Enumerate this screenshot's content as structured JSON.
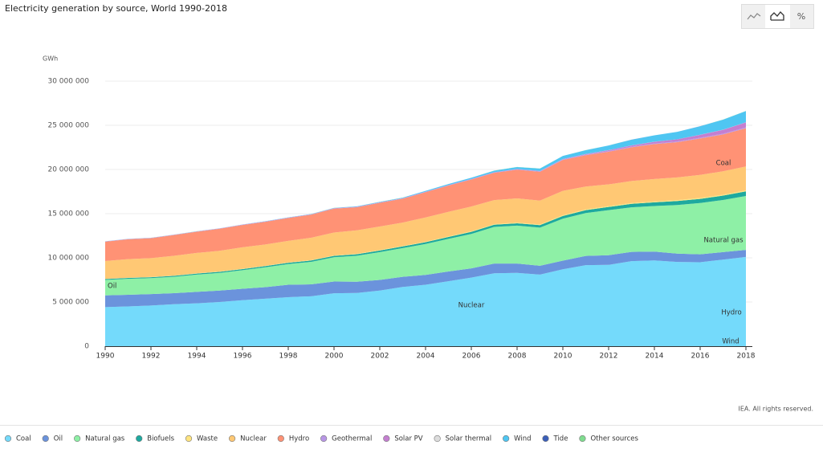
{
  "chart_data": {
    "type": "stacked_area",
    "title": "Electricity generation by source, World 1990-2018",
    "y_label": "GWh",
    "source": "IEA. All rights reserved.",
    "percent_button": "%",
    "x": [
      1990,
      1991,
      1992,
      1993,
      1994,
      1995,
      1996,
      1997,
      1998,
      1999,
      2000,
      2001,
      2002,
      2003,
      2004,
      2005,
      2006,
      2007,
      2008,
      2009,
      2010,
      2011,
      2012,
      2013,
      2014,
      2015,
      2016,
      2017,
      2018
    ],
    "xlim": [
      1990,
      2018
    ],
    "xticks": [
      1990,
      1992,
      1994,
      1996,
      1998,
      2000,
      2002,
      2004,
      2006,
      2008,
      2010,
      2012,
      2014,
      2016,
      2018
    ],
    "ylim": [
      0,
      30000000
    ],
    "yticks": [
      {
        "value": 0,
        "label": "0"
      },
      {
        "value": 5000000,
        "label": "5 000 000"
      },
      {
        "value": 10000000,
        "label": "10 000 000"
      },
      {
        "value": 15000000,
        "label": "15 000 000"
      },
      {
        "value": 20000000,
        "label": "20 000 000"
      },
      {
        "value": 25000000,
        "label": "25 000 000"
      },
      {
        "value": 30000000,
        "label": "30 000 000"
      }
    ],
    "grid": true,
    "series": [
      {
        "name": "Coal",
        "color": "#74dafb",
        "values": [
          4425000,
          4500000,
          4600000,
          4750000,
          4850000,
          5000000,
          5200000,
          5380000,
          5550000,
          5650000,
          5990000,
          6020000,
          6300000,
          6700000,
          6950000,
          7350000,
          7760000,
          8250000,
          8300000,
          8100000,
          8700000,
          9170000,
          9200000,
          9620000,
          9710000,
          9530000,
          9500000,
          9800000,
          10100000
        ]
      },
      {
        "name": "Oil",
        "color": "#6b93dc",
        "values": [
          1330000,
          1320000,
          1300000,
          1250000,
          1300000,
          1300000,
          1300000,
          1300000,
          1400000,
          1350000,
          1330000,
          1270000,
          1200000,
          1150000,
          1120000,
          1100000,
          1050000,
          1100000,
          1050000,
          1000000,
          980000,
          1050000,
          1100000,
          1050000,
          1000000,
          950000,
          900000,
          850000,
          800000
        ]
      },
      {
        "name": "Natural gas",
        "color": "#8ef0a6",
        "values": [
          1750000,
          1800000,
          1800000,
          1850000,
          1950000,
          2000000,
          2100000,
          2250000,
          2350000,
          2550000,
          2750000,
          2950000,
          3150000,
          3250000,
          3500000,
          3700000,
          3900000,
          4150000,
          4300000,
          4320000,
          4750000,
          4850000,
          5100000,
          5050000,
          5150000,
          5500000,
          5800000,
          5900000,
          6100000
        ]
      },
      {
        "name": "Biofuels",
        "color": "#1ea99f",
        "values": [
          100000,
          105000,
          110000,
          115000,
          120000,
          125000,
          130000,
          135000,
          140000,
          150000,
          160000,
          170000,
          180000,
          190000,
          200000,
          215000,
          230000,
          245000,
          260000,
          280000,
          310000,
          330000,
          360000,
          390000,
          420000,
          450000,
          470000,
          490000,
          520000
        ]
      },
      {
        "name": "Waste",
        "color": "#ffe47f",
        "values": [
          25000,
          27000,
          29000,
          31000,
          33000,
          36000,
          38000,
          40000,
          43000,
          45000,
          48000,
          52000,
          55000,
          58000,
          62000,
          65000,
          68000,
          72000,
          76000,
          80000,
          85000,
          90000,
          95000,
          99000,
          103000,
          106000,
          109000,
          112000,
          115000
        ]
      },
      {
        "name": "Nuclear",
        "color": "#ffc874",
        "values": [
          2010000,
          2100000,
          2130000,
          2230000,
          2300000,
          2330000,
          2420000,
          2410000,
          2440000,
          2530000,
          2590000,
          2650000,
          2660000,
          2640000,
          2740000,
          2770000,
          2800000,
          2720000,
          2740000,
          2700000,
          2760000,
          2580000,
          2460000,
          2480000,
          2540000,
          2570000,
          2610000,
          2640000,
          2710000
        ]
      },
      {
        "name": "Hydro",
        "color": "#ff9275",
        "values": [
          2190000,
          2250000,
          2250000,
          2350000,
          2400000,
          2500000,
          2530000,
          2570000,
          2590000,
          2610000,
          2700000,
          2620000,
          2680000,
          2700000,
          2860000,
          2980000,
          3060000,
          3090000,
          3250000,
          3260000,
          3500000,
          3540000,
          3700000,
          3820000,
          3950000,
          3980000,
          4120000,
          4170000,
          4330000
        ]
      },
      {
        "name": "Geothermal",
        "color": "#b896e6",
        "values": [
          36000,
          37000,
          38000,
          39000,
          40000,
          41000,
          42000,
          44000,
          46000,
          49000,
          52000,
          53000,
          54000,
          55000,
          57000,
          58000,
          60000,
          62000,
          65000,
          67000,
          68000,
          70000,
          70000,
          72000,
          75000,
          80000,
          83000,
          86000,
          89000
        ]
      },
      {
        "name": "Solar PV",
        "color": "#c47fd0",
        "values": [
          90,
          100,
          110,
          130,
          150,
          190,
          250,
          330,
          430,
          560,
          800,
          1100,
          1400,
          1900,
          2600,
          4000,
          5500,
          7500,
          12000,
          20000,
          32000,
          63000,
          98000,
          137000,
          190000,
          250000,
          330000,
          440000,
          570000
        ]
      },
      {
        "name": "Solar thermal",
        "color": "#dddddd",
        "values": [
          660,
          750,
          700,
          800,
          900,
          800,
          850,
          900,
          950,
          900,
          500,
          500,
          500,
          500,
          600,
          600,
          500,
          600,
          900,
          900,
          1600,
          2600,
          4700,
          5600,
          8500,
          9400,
          10500,
          11500,
          12000
        ]
      },
      {
        "name": "Wind",
        "color": "#4fc6f2",
        "values": [
          4000,
          4000,
          5000,
          6000,
          7000,
          8000,
          9000,
          12000,
          16000,
          22000,
          31000,
          38000,
          52000,
          63000,
          85000,
          104000,
          132000,
          170000,
          220000,
          276000,
          342000,
          437000,
          524000,
          645000,
          712000,
          831000,
          959000,
          1140000,
          1270000
        ]
      },
      {
        "name": "Tide",
        "color": "#3b5fb8",
        "values": [
          600,
          600,
          600,
          600,
          600,
          600,
          600,
          600,
          600,
          600,
          600,
          600,
          600,
          600,
          600,
          600,
          600,
          600,
          600,
          600,
          600,
          700,
          900,
          1000,
          1000,
          1000,
          1000,
          1000,
          1000
        ]
      },
      {
        "name": "Other sources",
        "color": "#7fdc8f",
        "values": [
          4000,
          4200,
          4400,
          4600,
          4800,
          5000,
          5200,
          5400,
          5600,
          5800,
          6000,
          6200,
          6400,
          6600,
          6800,
          7000,
          7200,
          7400,
          7600,
          7800,
          8000,
          8200,
          8400,
          8600,
          8800,
          9000,
          9300,
          9600,
          10000
        ]
      }
    ]
  }
}
